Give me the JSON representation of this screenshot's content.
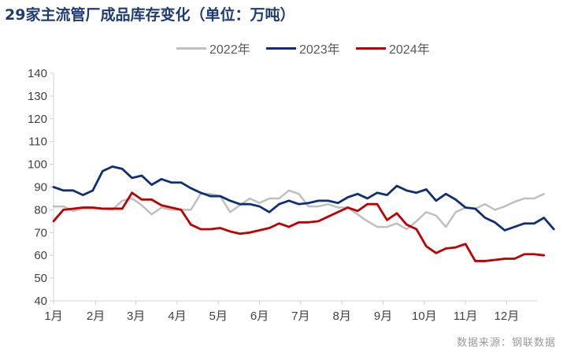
{
  "title": "29家主流管厂成品库存变化（单位：万吨）",
  "source": "数据来源：钢联数据",
  "chart_data": {
    "type": "line",
    "title": "29家主流管厂成品库存变化（单位：万吨）",
    "ylabel": "万吨",
    "ylim": [
      40,
      140
    ],
    "yticks": [
      40,
      50,
      60,
      70,
      80,
      90,
      100,
      110,
      120,
      130,
      140
    ],
    "xlim": [
      0,
      49.3
    ],
    "month_labels": [
      "1月",
      "2月",
      "3月",
      "4月",
      "5月",
      "6月",
      "7月",
      "8月",
      "9月",
      "10月",
      "11月",
      "12月"
    ],
    "month_positions": [
      0,
      4.3,
      8.4,
      12.6,
      16.8,
      21.0,
      25.2,
      29.4,
      33.6,
      37.8,
      42.0,
      46.2
    ],
    "legend_position": "top",
    "grid": false,
    "series": [
      {
        "name": "2022年",
        "color": "#bfbfbf",
        "values": [
          81.5,
          81.5,
          79.5,
          80.5,
          80.5,
          80.5,
          80,
          84,
          85,
          82,
          78,
          81,
          80,
          80,
          80,
          87,
          87,
          86,
          79,
          82,
          85,
          83,
          85,
          85,
          88.5,
          87,
          81.5,
          81.5,
          82.5,
          81,
          81,
          78,
          75,
          72.5,
          72.5,
          74,
          71.5,
          75,
          79,
          77.5,
          72.5,
          79,
          81,
          80.5,
          82.5,
          80,
          81.5,
          83.5,
          85,
          85,
          87
        ]
      },
      {
        "name": "2023年",
        "color": "#0e2e78",
        "values": [
          90,
          88.5,
          88.5,
          86.5,
          88.5,
          97,
          99,
          98,
          94,
          95,
          91,
          93.5,
          92,
          92,
          89.5,
          87.5,
          86,
          86,
          84,
          82.5,
          82.5,
          81.5,
          79,
          82.5,
          84,
          82.5,
          83,
          84,
          84,
          83,
          85.5,
          87,
          85,
          87.5,
          86.5,
          90.5,
          88.5,
          87.5,
          89,
          84,
          87,
          84.5,
          81,
          80.5,
          76.5,
          74.5,
          71,
          72.5,
          74,
          74,
          76.5,
          71.5
        ]
      },
      {
        "name": "2024年",
        "color": "#c00000",
        "values": [
          75,
          80,
          80.5,
          81,
          81,
          80.5,
          80.5,
          80.5,
          87.5,
          84.5,
          84.5,
          82,
          81,
          80,
          73.5,
          71.5,
          71.5,
          72,
          70.5,
          69.5,
          70,
          71,
          72,
          74,
          72.5,
          74.5,
          74.5,
          75,
          77,
          79,
          81,
          79.5,
          82.5,
          82.5,
          75.5,
          78.5,
          73.5,
          71.5,
          64,
          61,
          63,
          63.5,
          65,
          57.5,
          57.5,
          58,
          58.5,
          58.5,
          60.5,
          60.5,
          60
        ]
      }
    ]
  }
}
